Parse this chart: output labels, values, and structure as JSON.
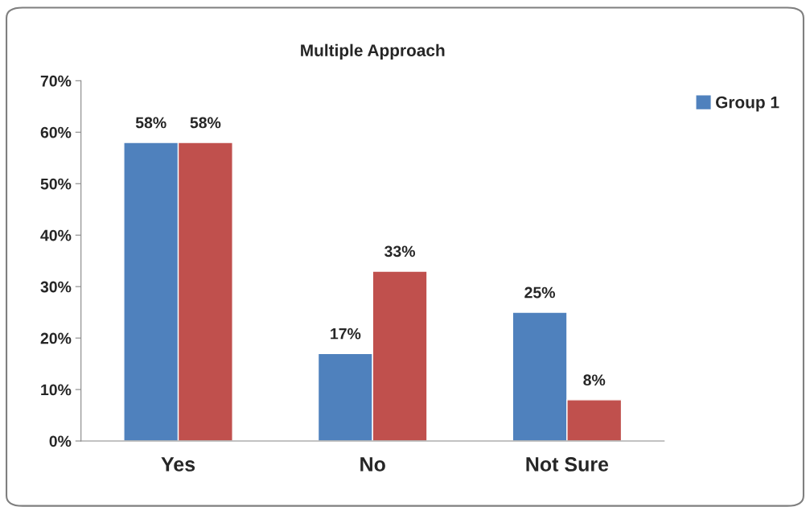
{
  "chart_data": {
    "type": "bar",
    "title": "Multiple Approach",
    "categories": [
      "Yes",
      "No",
      "Not Sure"
    ],
    "series": [
      {
        "name": "Group 1",
        "color": "#4f81bd",
        "values": [
          58,
          17,
          25
        ],
        "value_labels": [
          "58%",
          "17%",
          "25%"
        ]
      },
      {
        "color": "#c0504d",
        "values": [
          58,
          33,
          8
        ],
        "value_labels": [
          "58%",
          "33%",
          "8%"
        ]
      }
    ],
    "ylim": [
      0,
      70
    ],
    "yticks": [
      {
        "value": 0,
        "label": "0%"
      },
      {
        "value": 10,
        "label": "10%"
      },
      {
        "value": 20,
        "label": "20%"
      },
      {
        "value": 30,
        "label": "30%"
      },
      {
        "value": 40,
        "label": "40%"
      },
      {
        "value": 50,
        "label": "50%"
      },
      {
        "value": 60,
        "label": "60%"
      },
      {
        "value": 70,
        "label": "70%"
      }
    ],
    "grid": false,
    "legend": "top right"
  }
}
